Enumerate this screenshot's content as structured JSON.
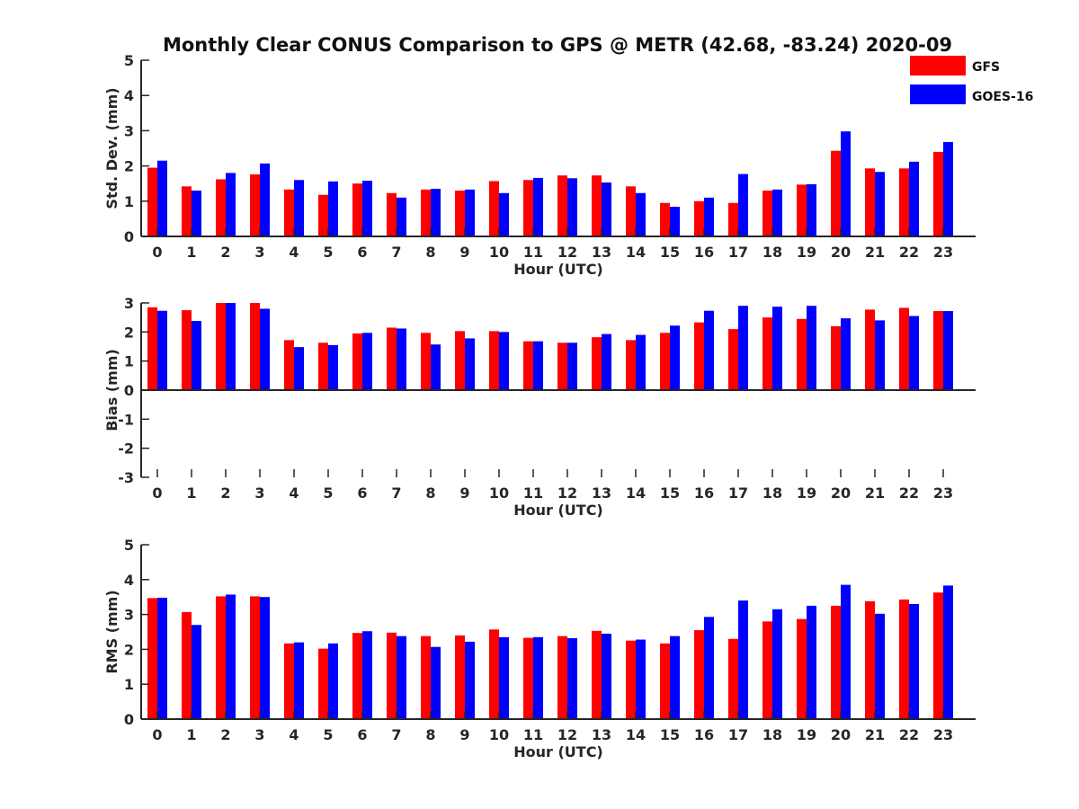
{
  "chart_data": {
    "title": "Monthly Clear CONUS Comparison to GPS @ METR (42.68, -83.24) 2020-09",
    "legend": {
      "placement": "top-right",
      "entries": [
        {
          "name": "GFS",
          "color": "#ff0000"
        },
        {
          "name": "GOES-16",
          "color": "#0000ff"
        }
      ]
    },
    "panels": [
      {
        "type": "bar",
        "xlabel": "Hour (UTC)",
        "ylabel": "Std. Dev. (mm)",
        "ylim": [
          0,
          5
        ],
        "yticks": [
          0,
          1,
          2,
          3,
          4,
          5
        ],
        "categories": [
          "0",
          "1",
          "2",
          "3",
          "4",
          "5",
          "6",
          "7",
          "8",
          "9",
          "10",
          "11",
          "12",
          "13",
          "14",
          "15",
          "16",
          "17",
          "18",
          "19",
          "20",
          "21",
          "22",
          "23"
        ],
        "series": [
          {
            "name": "GFS",
            "color": "#ff0000",
            "values": [
              1.95,
              1.42,
              1.62,
              1.76,
              1.33,
              1.18,
              1.5,
              1.23,
              1.33,
              1.3,
              1.57,
              1.6,
              1.73,
              1.73,
              1.42,
              0.95,
              1.0,
              0.95,
              1.3,
              1.47,
              2.43,
              1.93,
              1.93,
              2.4
            ]
          },
          {
            "name": "GOES-16",
            "color": "#0000ff",
            "values": [
              2.15,
              1.3,
              1.8,
              2.07,
              1.6,
              1.56,
              1.58,
              1.1,
              1.35,
              1.33,
              1.23,
              1.66,
              1.65,
              1.53,
              1.23,
              0.84,
              1.1,
              1.77,
              1.33,
              1.48,
              2.98,
              1.83,
              2.12,
              2.68
            ]
          }
        ]
      },
      {
        "type": "bar",
        "xlabel": "Hour (UTC)",
        "ylabel": "Bias (mm)",
        "ylim": [
          -3,
          3
        ],
        "yticks": [
          -3,
          -2,
          -1,
          0,
          1,
          2,
          3
        ],
        "categories": [
          "0",
          "1",
          "2",
          "3",
          "4",
          "5",
          "6",
          "7",
          "8",
          "9",
          "10",
          "11",
          "12",
          "13",
          "14",
          "15",
          "16",
          "17",
          "18",
          "19",
          "20",
          "21",
          "22",
          "23"
        ],
        "series": [
          {
            "name": "GFS",
            "color": "#ff0000",
            "values": [
              2.85,
              2.75,
              3.0,
              3.0,
              1.72,
              1.63,
              1.95,
              2.15,
              1.97,
              2.03,
              2.03,
              1.68,
              1.63,
              1.82,
              1.72,
              1.97,
              2.33,
              2.1,
              2.5,
              2.45,
              2.2,
              2.77,
              2.83,
              2.72
            ]
          },
          {
            "name": "GOES-16",
            "color": "#0000ff",
            "values": [
              2.73,
              2.38,
              3.0,
              2.8,
              1.48,
              1.55,
              1.97,
              2.12,
              1.57,
              1.78,
              2.0,
              1.68,
              1.63,
              1.93,
              1.9,
              2.22,
              2.73,
              2.9,
              2.87,
              2.9,
              2.47,
              2.4,
              2.55,
              2.72
            ]
          }
        ]
      },
      {
        "type": "bar",
        "xlabel": "Hour (UTC)",
        "ylabel": "RMS (mm)",
        "ylim": [
          0,
          5
        ],
        "yticks": [
          0,
          1,
          2,
          3,
          4,
          5
        ],
        "categories": [
          "0",
          "1",
          "2",
          "3",
          "4",
          "5",
          "6",
          "7",
          "8",
          "9",
          "10",
          "11",
          "12",
          "13",
          "14",
          "15",
          "16",
          "17",
          "18",
          "19",
          "20",
          "21",
          "22",
          "23"
        ],
        "series": [
          {
            "name": "GFS",
            "color": "#ff0000",
            "values": [
              3.47,
              3.07,
              3.52,
              3.52,
              2.17,
              2.02,
              2.47,
              2.48,
              2.38,
              2.4,
              2.57,
              2.33,
              2.38,
              2.53,
              2.25,
              2.17,
              2.55,
              2.3,
              2.8,
              2.87,
              3.25,
              3.38,
              3.43,
              3.63
            ]
          },
          {
            "name": "GOES-16",
            "color": "#0000ff",
            "values": [
              3.48,
              2.7,
              3.57,
              3.5,
              2.2,
              2.17,
              2.52,
              2.38,
              2.07,
              2.22,
              2.35,
              2.35,
              2.32,
              2.45,
              2.28,
              2.38,
              2.93,
              3.4,
              3.15,
              3.25,
              3.85,
              3.02,
              3.3,
              3.83
            ]
          }
        ]
      }
    ]
  }
}
